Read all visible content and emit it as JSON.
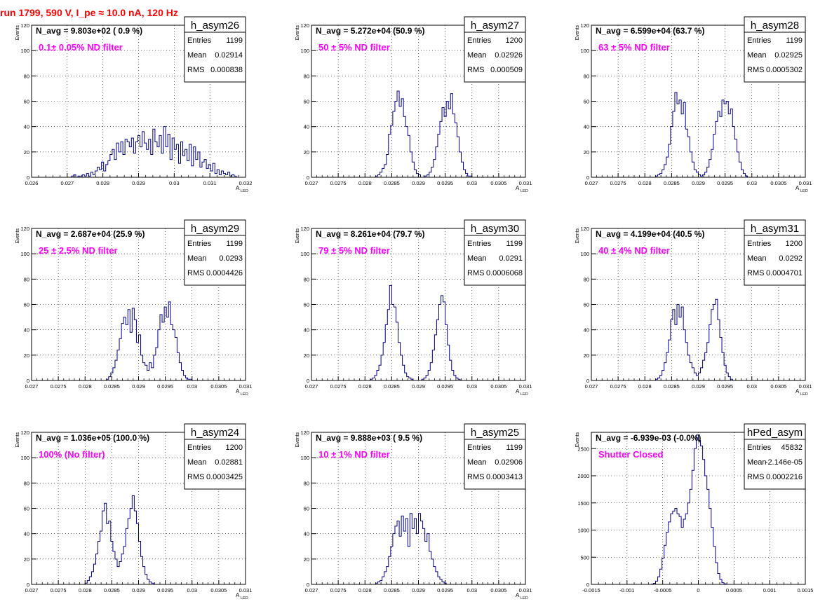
{
  "header": {
    "run_title": "run 1799,   590 V, I_pe ≈ 10.0 nA, 120 Hz"
  },
  "colors": {
    "histogram_line": "#00008b",
    "annotation": "#ff00ff",
    "title_red": "#ff0000",
    "grid": "#000000"
  },
  "chart_data": [
    {
      "type": "histogram",
      "name": "h_asym26",
      "navg": "N_avg = 9.803e+02 ( 0.9 %)",
      "annotation": "0.1± 0.05% ND filter",
      "stats": [
        [
          "Entries",
          "1199"
        ],
        [
          "Mean",
          "0.02914"
        ],
        [
          "RMS",
          "0.000838"
        ]
      ],
      "ylabel": "Events",
      "xlabel": "A",
      "xlabel_sub": "LED",
      "xlim": [
        0.026,
        0.032
      ],
      "ylim": [
        0,
        120
      ],
      "xticks": [
        0.026,
        0.027,
        0.028,
        0.029,
        0.03,
        0.031,
        0.032
      ],
      "xtick_labels": [
        "0.026",
        "0.027",
        "0.028",
        "0.029",
        "0.03",
        "0.031",
        "0.032"
      ],
      "yticks": [
        0,
        20,
        40,
        60,
        80,
        100,
        120
      ],
      "ytick_labels": [
        "0",
        "20",
        "40",
        "60",
        "80",
        "100",
        "120"
      ],
      "bin_start": 0.027,
      "bin_width": 6e-05,
      "counts": [
        0,
        0,
        1,
        2,
        0,
        1,
        0,
        2,
        1,
        3,
        1,
        4,
        2,
        5,
        8,
        6,
        12,
        5,
        10,
        13,
        18,
        22,
        14,
        27,
        20,
        28,
        18,
        30,
        28,
        24,
        31,
        19,
        28,
        33,
        24,
        36,
        27,
        22,
        30,
        18,
        38,
        28,
        24,
        33,
        19,
        40,
        24,
        34,
        14,
        31,
        22,
        26,
        11,
        28,
        17,
        22,
        13,
        26,
        9,
        24,
        14,
        20,
        8,
        12,
        14,
        7,
        10,
        5,
        11,
        3,
        6,
        2,
        5,
        3,
        2,
        4,
        1,
        2,
        1,
        0
      ]
    },
    {
      "type": "histogram",
      "name": "h_asym27",
      "navg": "N_avg = 5.272e+04 (50.9 %)",
      "annotation": "50 ± 5% ND filter",
      "stats": [
        [
          "Entries",
          "1200"
        ],
        [
          "Mean",
          "0.02926"
        ],
        [
          "RMS",
          "0.000509"
        ]
      ],
      "ylabel": "Events",
      "xlabel": "A",
      "xlabel_sub": "LED",
      "xlim": [
        0.027,
        0.031
      ],
      "ylim": [
        0,
        120
      ],
      "xticks": [
        0.027,
        0.0275,
        0.028,
        0.0285,
        0.029,
        0.0295,
        0.03,
        0.0305,
        0.031
      ],
      "xtick_labels": [
        "0.027",
        "0.0275",
        "0.028",
        "0.0285",
        "0.029",
        "0.0295",
        "0.03",
        "0.0305",
        "0.031"
      ],
      "yticks": [
        0,
        20,
        40,
        60,
        80,
        100,
        120
      ],
      "ytick_labels": [
        "0",
        "20",
        "40",
        "60",
        "80",
        "100",
        "120"
      ],
      "bin_start": 0.0282,
      "bin_width": 4e-05,
      "counts": [
        1,
        2,
        4,
        7,
        10,
        18,
        34,
        41,
        52,
        60,
        68,
        56,
        62,
        48,
        40,
        33,
        20,
        12,
        6,
        3,
        2,
        0,
        0,
        1,
        2,
        4,
        8,
        14,
        24,
        34,
        44,
        55,
        48,
        60,
        54,
        66,
        50,
        43,
        32,
        20,
        12,
        6,
        3,
        1,
        1
      ]
    },
    {
      "type": "histogram",
      "name": "h_asym28",
      "navg": "N_avg = 6.599e+04 (63.7 %)",
      "annotation": "63 ± 5% ND filter",
      "stats": [
        [
          "Entries",
          "1199"
        ],
        [
          "Mean",
          "0.02925"
        ],
        [
          "RMS",
          "0.0005302"
        ]
      ],
      "ylabel": "Events",
      "xlabel": "A",
      "xlabel_sub": "LED",
      "xlim": [
        0.027,
        0.031
      ],
      "ylim": [
        0,
        120
      ],
      "xticks": [
        0.027,
        0.0275,
        0.028,
        0.0285,
        0.029,
        0.0295,
        0.03,
        0.0305,
        0.031
      ],
      "xtick_labels": [
        "0.027",
        "0.0275",
        "0.028",
        "0.0285",
        "0.029",
        "0.0295",
        "0.03",
        "0.0305",
        "0.031"
      ],
      "yticks": [
        0,
        20,
        40,
        60,
        80,
        100,
        120
      ],
      "ytick_labels": [
        "0",
        "20",
        "40",
        "60",
        "80",
        "100",
        "120"
      ],
      "bin_start": 0.0282,
      "bin_width": 4e-05,
      "counts": [
        1,
        2,
        3,
        6,
        10,
        16,
        26,
        40,
        52,
        67,
        58,
        61,
        50,
        59,
        38,
        32,
        20,
        12,
        6,
        4,
        2,
        1,
        2,
        4,
        8,
        14,
        22,
        34,
        44,
        52,
        48,
        61,
        58,
        60,
        50,
        54,
        40,
        30,
        20,
        12,
        6,
        3,
        1
      ]
    },
    {
      "type": "histogram",
      "name": "h_asym29",
      "navg": "N_avg = 2.687e+04 (25.9 %)",
      "annotation": "25 ± 2.5% ND filter",
      "stats": [
        [
          "Entries",
          "1199"
        ],
        [
          "Mean",
          "0.0293"
        ],
        [
          "RMS",
          "0.0004426"
        ]
      ],
      "ylabel": "Events",
      "xlabel": "A",
      "xlabel_sub": "LED",
      "xlim": [
        0.027,
        0.031
      ],
      "ylim": [
        0,
        120
      ],
      "xticks": [
        0.027,
        0.0275,
        0.028,
        0.0285,
        0.029,
        0.0295,
        0.03,
        0.0305,
        0.031
      ],
      "xtick_labels": [
        "0.027",
        "0.0275",
        "0.028",
        "0.0285",
        "0.029",
        "0.0295",
        "0.03",
        "0.0305",
        "0.031"
      ],
      "yticks": [
        0,
        20,
        40,
        60,
        80,
        100,
        120
      ],
      "ytick_labels": [
        "0",
        "20",
        "40",
        "60",
        "80",
        "100",
        "120"
      ],
      "bin_start": 0.0284,
      "bin_width": 4e-05,
      "counts": [
        1,
        3,
        6,
        10,
        16,
        24,
        33,
        45,
        50,
        44,
        56,
        38,
        57,
        48,
        30,
        36,
        20,
        14,
        12,
        8,
        14,
        10,
        20,
        26,
        40,
        52,
        46,
        58,
        50,
        62,
        44,
        40,
        34,
        22,
        14,
        8,
        4,
        2,
        1,
        1
      ]
    },
    {
      "type": "histogram",
      "name": "h_asym30",
      "navg": "N_avg = 8.261e+04 (79.7 %)",
      "annotation": "79 ± 5% ND filter",
      "stats": [
        [
          "Entries",
          "1199"
        ],
        [
          "Mean",
          "0.0291"
        ],
        [
          "RMS",
          "0.0006068"
        ]
      ],
      "ylabel": "Events",
      "xlabel": "A",
      "xlabel_sub": "LED",
      "xlim": [
        0.027,
        0.031
      ],
      "ylim": [
        0,
        120
      ],
      "xticks": [
        0.027,
        0.0275,
        0.028,
        0.0285,
        0.029,
        0.0295,
        0.03,
        0.0305,
        0.031
      ],
      "xtick_labels": [
        "0.027",
        "0.0275",
        "0.028",
        "0.0285",
        "0.029",
        "0.0295",
        "0.03",
        "0.0305",
        "0.031"
      ],
      "yticks": [
        0,
        20,
        40,
        60,
        80,
        100,
        120
      ],
      "ytick_labels": [
        "0",
        "20",
        "40",
        "60",
        "80",
        "100",
        "120"
      ],
      "bin_start": 0.0281,
      "bin_width": 4e-05,
      "counts": [
        1,
        2,
        4,
        8,
        12,
        20,
        30,
        44,
        56,
        75,
        60,
        58,
        46,
        30,
        20,
        12,
        6,
        3,
        2,
        1,
        0,
        0,
        0,
        0,
        1,
        2,
        4,
        8,
        14,
        24,
        36,
        48,
        60,
        67,
        62,
        44,
        28,
        16,
        8,
        4,
        2,
        1
      ]
    },
    {
      "type": "histogram",
      "name": "h_asym31",
      "navg": "N_avg = 4.199e+04 (40.5 %)",
      "annotation": "40 ± 4% ND filter",
      "stats": [
        [
          "Entries",
          "1200"
        ],
        [
          "Mean",
          "0.0292"
        ],
        [
          "RMS",
          "0.0004701"
        ]
      ],
      "ylabel": "Events",
      "xlabel": "A",
      "xlabel_sub": "LED",
      "xlim": [
        0.027,
        0.031
      ],
      "ylim": [
        0,
        120
      ],
      "xticks": [
        0.027,
        0.0275,
        0.028,
        0.0285,
        0.029,
        0.0295,
        0.03,
        0.0305,
        0.031
      ],
      "xtick_labels": [
        "0.027",
        "0.0275",
        "0.028",
        "0.0285",
        "0.029",
        "0.0295",
        "0.03",
        "0.0305",
        "0.031"
      ],
      "yticks": [
        0,
        20,
        40,
        60,
        80,
        100,
        120
      ],
      "ytick_labels": [
        "0",
        "20",
        "40",
        "60",
        "80",
        "100",
        "120"
      ],
      "bin_start": 0.0282,
      "bin_width": 4e-05,
      "counts": [
        1,
        2,
        4,
        8,
        14,
        22,
        32,
        48,
        56,
        44,
        60,
        50,
        58,
        40,
        30,
        20,
        14,
        10,
        6,
        4,
        6,
        10,
        16,
        22,
        30,
        44,
        56,
        60,
        64,
        48,
        34,
        22,
        12,
        6,
        3,
        1
      ]
    },
    {
      "type": "histogram",
      "name": "h_asym24",
      "navg": "N_avg = 1.036e+05 (100.0 %)",
      "annotation": "100% (No filter)",
      "stats": [
        [
          "Entries",
          "1200"
        ],
        [
          "Mean",
          "0.02881"
        ],
        [
          "RMS",
          "0.0003425"
        ]
      ],
      "ylabel": "Events",
      "xlabel": "A",
      "xlabel_sub": "LED",
      "xlim": [
        0.027,
        0.031
      ],
      "ylim": [
        0,
        120
      ],
      "xticks": [
        0.027,
        0.0275,
        0.028,
        0.0285,
        0.029,
        0.0295,
        0.03,
        0.0305,
        0.031
      ],
      "xtick_labels": [
        "0.027",
        "0.0275",
        "0.028",
        "0.0285",
        "0.029",
        "0.0295",
        "0.03",
        "0.0305",
        "0.031"
      ],
      "yticks": [
        0,
        20,
        40,
        60,
        80,
        100,
        120
      ],
      "ytick_labels": [
        "0",
        "20",
        "40",
        "60",
        "80",
        "100",
        "120"
      ],
      "bin_start": 0.028,
      "bin_width": 4e-05,
      "counts": [
        1,
        3,
        6,
        10,
        16,
        24,
        34,
        42,
        58,
        64,
        48,
        50,
        34,
        26,
        20,
        14,
        18,
        24,
        30,
        44,
        52,
        60,
        70,
        58,
        48,
        34,
        22,
        14,
        8,
        4,
        2,
        1
      ]
    },
    {
      "type": "histogram",
      "name": "h_asym25",
      "navg": "N_avg = 9.888e+03 ( 9.5 %)",
      "annotation": "10 ± 1% ND filter",
      "stats": [
        [
          "Entries",
          "1199"
        ],
        [
          "Mean",
          "0.02906"
        ],
        [
          "RMS",
          "0.0003413"
        ]
      ],
      "ylabel": "Events",
      "xlabel": "A",
      "xlabel_sub": "LED",
      "xlim": [
        0.027,
        0.031
      ],
      "ylim": [
        0,
        120
      ],
      "xticks": [
        0.027,
        0.0275,
        0.028,
        0.0285,
        0.029,
        0.0295,
        0.03,
        0.0305,
        0.031
      ],
      "xtick_labels": [
        "0.027",
        "0.0275",
        "0.028",
        "0.0285",
        "0.029",
        "0.0295",
        "0.03",
        "0.0305",
        "0.031"
      ],
      "yticks": [
        0,
        20,
        40,
        60,
        80,
        100,
        120
      ],
      "ytick_labels": [
        "0",
        "20",
        "40",
        "60",
        "80",
        "100",
        "120"
      ],
      "bin_start": 0.0282,
      "bin_width": 4e-05,
      "counts": [
        1,
        2,
        3,
        6,
        10,
        14,
        22,
        30,
        40,
        46,
        50,
        38,
        54,
        42,
        52,
        30,
        56,
        44,
        52,
        40,
        56,
        50,
        44,
        34,
        40,
        26,
        20,
        14,
        10,
        6,
        4,
        2,
        1
      ]
    },
    {
      "type": "histogram",
      "name": "hPed_asym",
      "navg": "N_avg = -6.939e-03 (-0.0%)",
      "annotation": "Shutter Closed",
      "stats": [
        [
          "Entries",
          "45832"
        ],
        [
          "Mean",
          "-2.146e-05"
        ],
        [
          "RMS",
          "0.0002216"
        ]
      ],
      "ylabel": "Events",
      "xlabel": "",
      "xlabel_sub": "",
      "xlim": [
        -0.0015,
        0.0015
      ],
      "ylim": [
        0,
        2800
      ],
      "xticks": [
        -0.0015,
        -0.001,
        -0.0005,
        0,
        0.0005,
        0.001,
        0.0015
      ],
      "xtick_labels": [
        "-0.0015",
        "-0.001",
        "-0.0005",
        "0",
        "0.0005",
        "0.001",
        "0.0015"
      ],
      "yticks": [
        0,
        500,
        1000,
        1500,
        2000,
        2500
      ],
      "ytick_labels": [
        "0",
        "500",
        "1000",
        "1500",
        "2000",
        "2500"
      ],
      "bin_start": -0.00066,
      "bin_width": 3e-05,
      "counts": [
        5,
        20,
        60,
        140,
        280,
        480,
        720,
        960,
        1150,
        1300,
        1350,
        1400,
        1300,
        1250,
        1050,
        1200,
        1300,
        1500,
        1750,
        2100,
        2500,
        2750,
        2650,
        2550,
        2300,
        2000,
        1750,
        1400,
        1050,
        700,
        400,
        200,
        90,
        30,
        10
      ]
    }
  ]
}
